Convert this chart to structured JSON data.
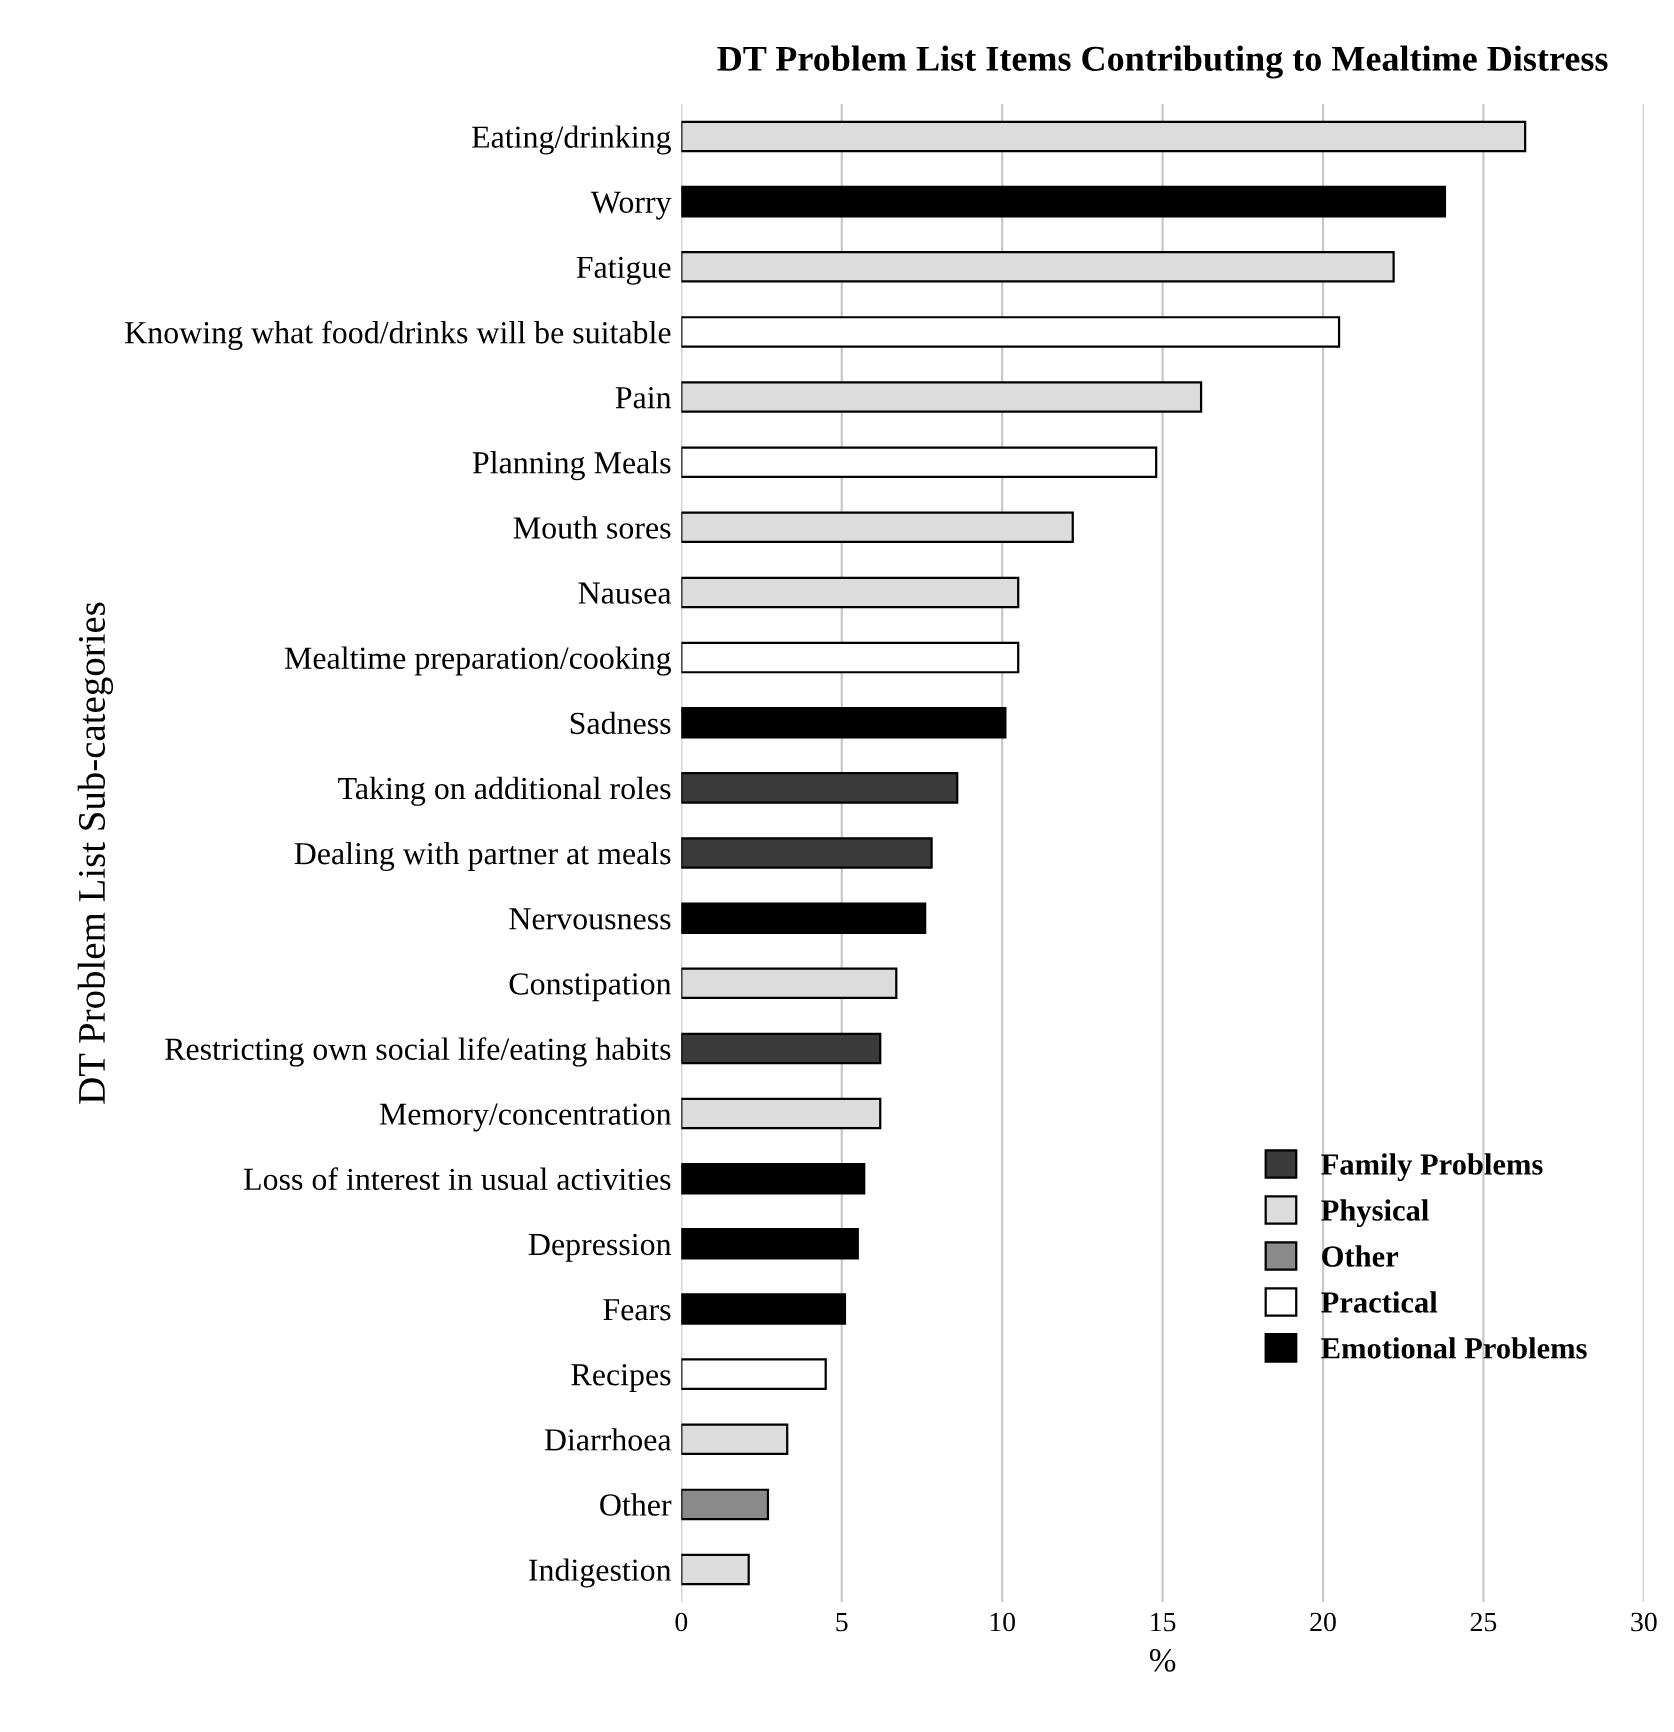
{
  "chart_data": {
    "type": "bar",
    "orientation": "horizontal",
    "title": "DT Problem List Items Contributing to Mealtime Distress",
    "xlabel": "%",
    "ylabel": "DT Problem List Sub-categories",
    "categories": [
      "Eating/drinking",
      "Worry",
      "Fatigue",
      "Knowing what food/drinks will be suitable",
      "Pain",
      "Planning Meals",
      "Mouth sores",
      "Nausea",
      "Mealtime preparation/cooking",
      "Sadness",
      "Taking on additional roles",
      "Dealing with partner at meals",
      "Nervousness",
      "Constipation",
      "Restricting own social life/eating habits",
      "Memory/concentration",
      "Loss of interest in usual activities",
      "Depression",
      "Fears",
      "Recipes",
      "Diarrhoea",
      "Other",
      "Indigestion"
    ],
    "series": [
      {
        "name": "Family Problems",
        "color": "#3a3a3a",
        "values": [
          null,
          null,
          null,
          null,
          null,
          null,
          null,
          null,
          null,
          null,
          8.6,
          7.8,
          null,
          null,
          6.2,
          null,
          null,
          null,
          null,
          null,
          null,
          null,
          null
        ]
      },
      {
        "name": "Physical",
        "color": "#dcdcdc",
        "values": [
          26.3,
          null,
          22.2,
          null,
          16.2,
          null,
          12.2,
          10.5,
          null,
          null,
          null,
          null,
          null,
          6.7,
          null,
          6.2,
          null,
          null,
          null,
          null,
          3.3,
          null,
          2.1
        ]
      },
      {
        "name": "Other",
        "color": "#8a8a8a",
        "values": [
          null,
          null,
          null,
          null,
          null,
          null,
          null,
          null,
          null,
          null,
          null,
          null,
          null,
          null,
          null,
          null,
          null,
          null,
          null,
          null,
          null,
          2.7,
          null
        ]
      },
      {
        "name": "Practical",
        "color": "#ffffff",
        "values": [
          null,
          null,
          null,
          20.5,
          null,
          14.8,
          null,
          null,
          10.5,
          null,
          null,
          null,
          null,
          null,
          null,
          null,
          null,
          null,
          null,
          4.5,
          null,
          null,
          null
        ]
      },
      {
        "name": "Emotional Problems",
        "color": "#000000",
        "values": [
          null,
          23.8,
          null,
          null,
          null,
          null,
          null,
          null,
          null,
          10.1,
          null,
          null,
          7.6,
          null,
          null,
          null,
          5.7,
          5.5,
          5.1,
          null,
          null,
          null,
          null
        ]
      }
    ],
    "xlim": [
      0,
      30
    ],
    "xticks": [
      0,
      5,
      10,
      15,
      20,
      25,
      30
    ],
    "grid": "x",
    "legend": "bottom right"
  }
}
